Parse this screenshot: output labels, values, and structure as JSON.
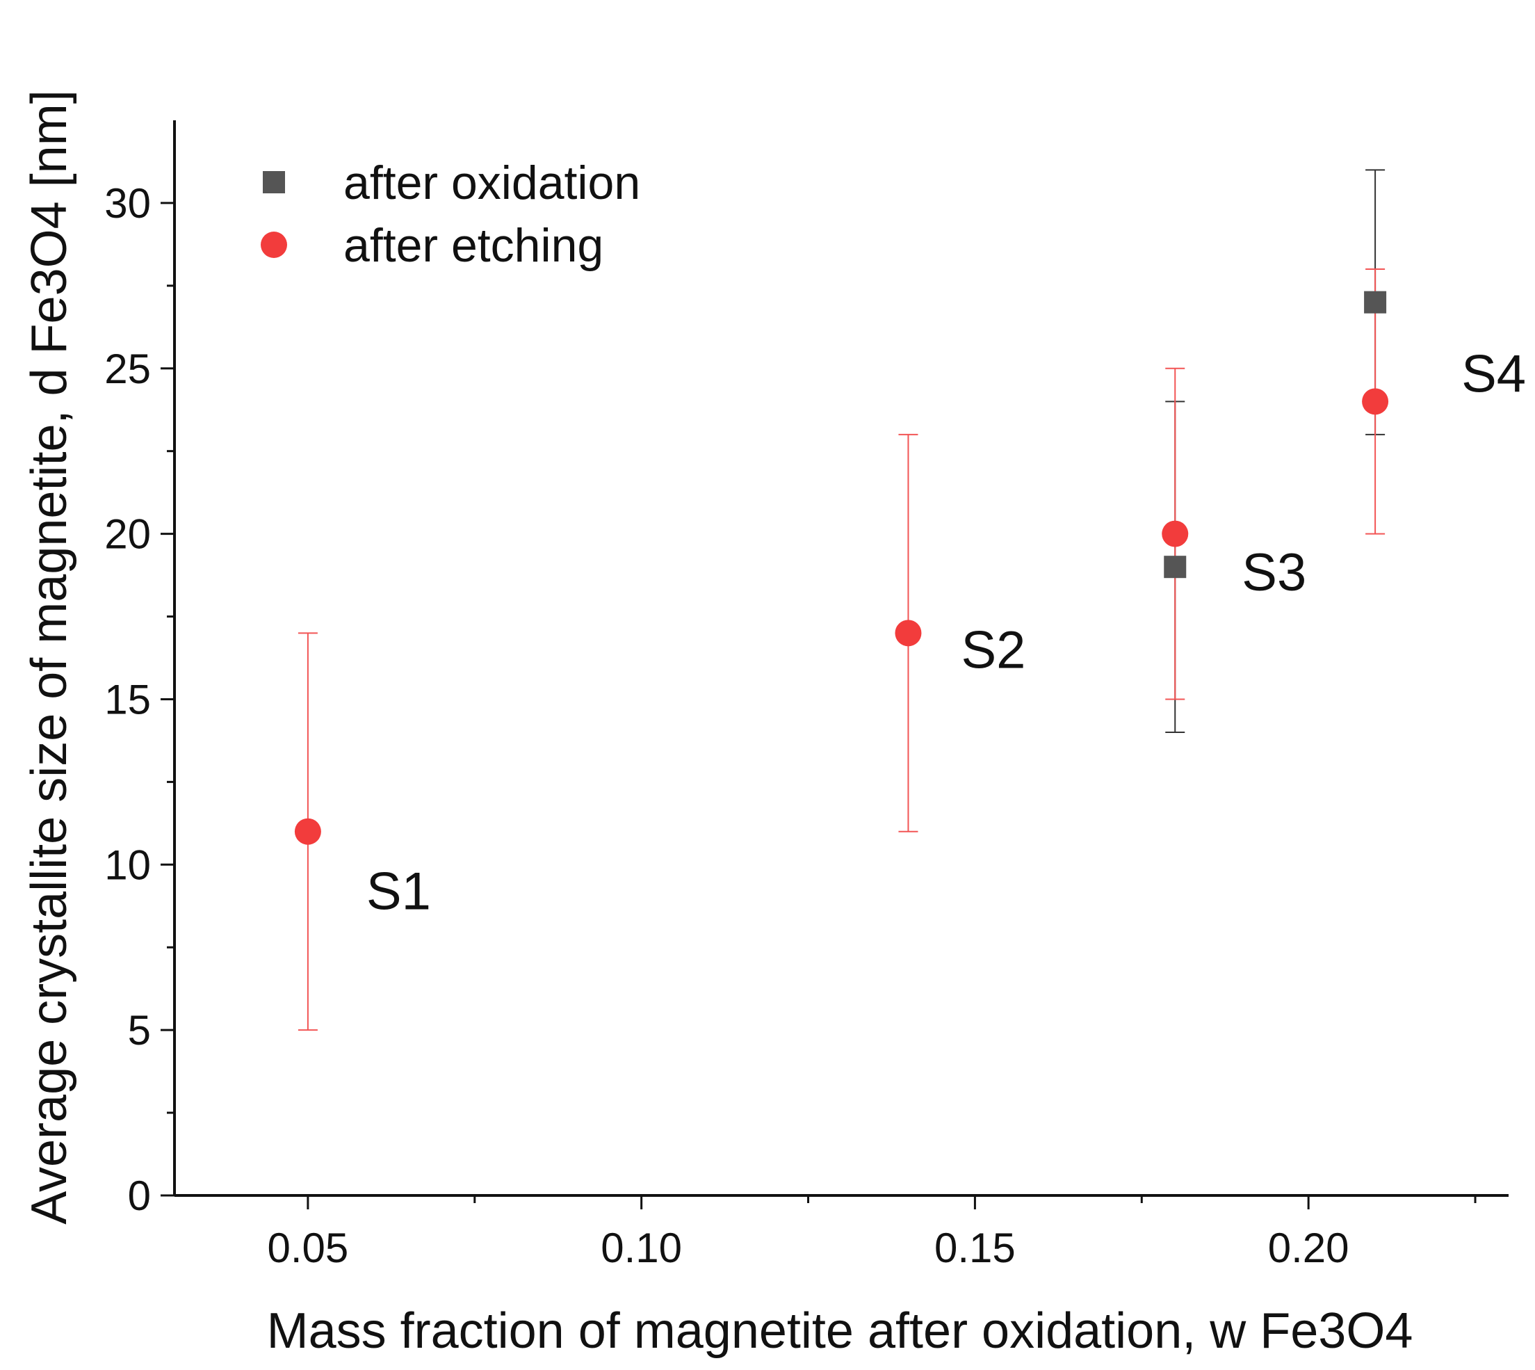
{
  "chart_data": {
    "type": "scatter",
    "title": "",
    "xlabel": "Mass fraction of magnetite after oxidation, w Fe3O4",
    "ylabel": "Average crystallite size of magnetite, d Fe3O4 [nm]",
    "xlim": [
      0.03,
      0.23
    ],
    "ylim": [
      0,
      32.5
    ],
    "x_major_ticks": [
      0.05,
      0.1,
      0.15,
      0.2
    ],
    "x_minor_ticks": [
      0.075,
      0.125,
      0.175,
      0.225
    ],
    "x_tick_labels": [
      "0.05",
      "0.10",
      "0.15",
      "0.20"
    ],
    "y_major_ticks": [
      0,
      5,
      10,
      15,
      20,
      25,
      30
    ],
    "y_minor_ticks": [
      2.5,
      7.5,
      12.5,
      17.5,
      22.5,
      27.5
    ],
    "y_tick_labels": [
      "0",
      "5",
      "10",
      "15",
      "20",
      "25",
      "30"
    ],
    "grid": false,
    "legend_position": "top-left",
    "series": [
      {
        "name": "after oxidation",
        "marker": "square",
        "color": "#555555",
        "errorbar_color": "#333333",
        "points": [
          {
            "x": 0.18,
            "y": 19,
            "err": 5
          },
          {
            "x": 0.21,
            "y": 27,
            "err": 4
          }
        ]
      },
      {
        "name": "after etching",
        "marker": "circle",
        "color": "#f23c3c",
        "errorbar_color": "#f25555",
        "points": [
          {
            "x": 0.05,
            "y": 11,
            "err": 6
          },
          {
            "x": 0.14,
            "y": 17,
            "err": 6
          },
          {
            "x": 0.18,
            "y": 20,
            "err": 5
          },
          {
            "x": 0.21,
            "y": 24,
            "err": 4
          }
        ]
      }
    ],
    "annotations": [
      {
        "text": "S1",
        "x": 0.05,
        "y": 11
      },
      {
        "text": "S2",
        "x": 0.14,
        "y": 17
      },
      {
        "text": "S3",
        "x": 0.18,
        "y": 19
      },
      {
        "text": "S4",
        "x": 0.21,
        "y": 24
      }
    ]
  }
}
